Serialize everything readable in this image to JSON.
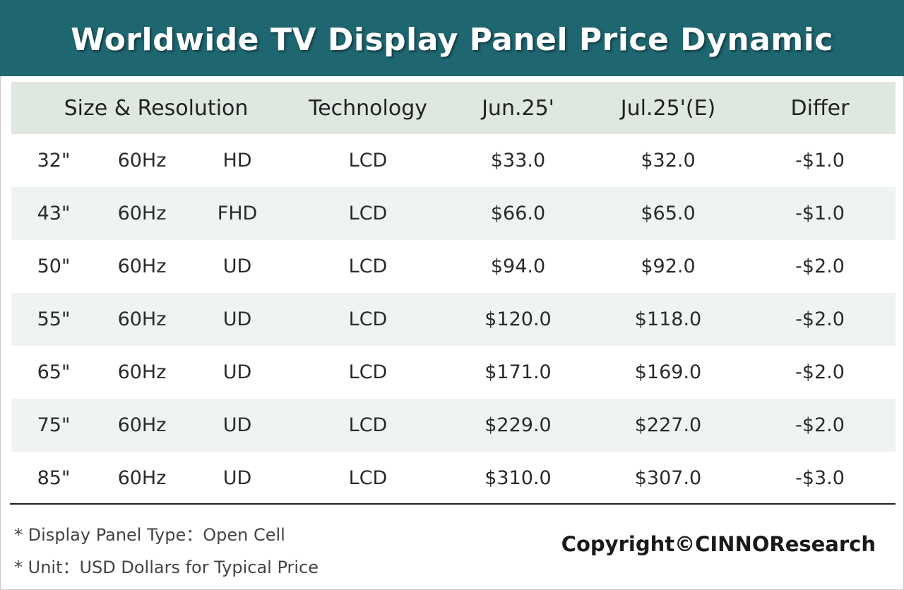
{
  "banner": {
    "title": "Worldwide TV Display Panel Price Dynamic",
    "background_color": "#1e6670"
  },
  "chart_data": {
    "type": "table",
    "title": "Worldwide TV Display Panel Price Dynamic",
    "headers": {
      "size_resolution": "Size & Resolution",
      "technology": "Technology",
      "jun": "Jun.25'",
      "jul": "Jul.25'(E)",
      "differ": "Differ"
    },
    "rows": [
      {
        "size": "32\"",
        "refresh": "60Hz",
        "resolution": "HD",
        "technology": "LCD",
        "jun": "$33.0",
        "jul": "$32.0",
        "differ": "-$1.0"
      },
      {
        "size": "43\"",
        "refresh": "60Hz",
        "resolution": "FHD",
        "technology": "LCD",
        "jun": "$66.0",
        "jul": "$65.0",
        "differ": "-$1.0"
      },
      {
        "size": "50\"",
        "refresh": "60Hz",
        "resolution": "UD",
        "technology": "LCD",
        "jun": "$94.0",
        "jul": "$92.0",
        "differ": "-$2.0"
      },
      {
        "size": "55\"",
        "refresh": "60Hz",
        "resolution": "UD",
        "technology": "LCD",
        "jun": "$120.0",
        "jul": "$118.0",
        "differ": "-$2.0"
      },
      {
        "size": "65\"",
        "refresh": "60Hz",
        "resolution": "UD",
        "technology": "LCD",
        "jun": "$171.0",
        "jul": "$169.0",
        "differ": "-$2.0"
      },
      {
        "size": "75\"",
        "refresh": "60Hz",
        "resolution": "UD",
        "technology": "LCD",
        "jun": "$229.0",
        "jul": "$227.0",
        "differ": "-$2.0"
      },
      {
        "size": "85\"",
        "refresh": "60Hz",
        "resolution": "UD",
        "technology": "LCD",
        "jun": "$310.0",
        "jul": "$307.0",
        "differ": "-$3.0"
      }
    ],
    "colors": {
      "header_background": "#dfe7e1",
      "alt_row_background": "#eff4f0"
    }
  },
  "footer": {
    "note_panel_type": "* Display Panel Type：Open Cell",
    "note_unit": "* Unit：USD Dollars for Typical Price",
    "copyright": "Copyright©CINNOResearch"
  }
}
